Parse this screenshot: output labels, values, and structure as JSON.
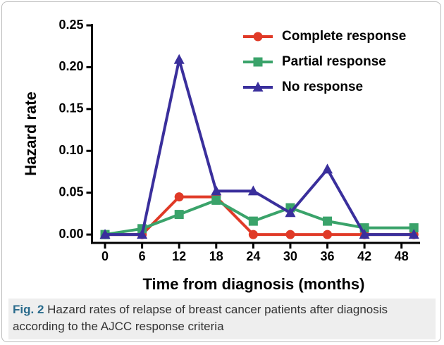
{
  "chart_data": {
    "type": "line",
    "xlabel": "Time from diagnosis (months)",
    "ylabel": "Hazard rate",
    "x": [
      0,
      6,
      12,
      18,
      24,
      30,
      36,
      42,
      50
    ],
    "xlim": [
      -2,
      51
    ],
    "xticks": [
      0,
      6,
      12,
      18,
      24,
      30,
      36,
      42,
      48
    ],
    "ylim": [
      -0.01,
      0.25
    ],
    "yticks": [
      {
        "value": 0,
        "label": "0.00"
      },
      {
        "value": 0.05,
        "label": "0.05"
      },
      {
        "value": 0.1,
        "label": "0.10"
      },
      {
        "value": 0.15,
        "label": "0.15"
      },
      {
        "value": 0.2,
        "label": "0.20"
      },
      {
        "value": 0.25,
        "label": "0.25"
      }
    ],
    "legend": "upper right",
    "series": [
      {
        "name": "Complete response",
        "color": "#e03a27",
        "marker": "circle",
        "values": [
          0,
          0,
          0.045,
          0.045,
          0,
          0,
          0,
          0,
          0
        ]
      },
      {
        "name": "Partial response",
        "color": "#3aa36a",
        "marker": "square",
        "values": [
          0,
          0.007,
          0.024,
          0.041,
          0.016,
          0.032,
          0.016,
          0.008,
          0.008
        ]
      },
      {
        "name": "No response",
        "color": "#3a2f9c",
        "marker": "triangle",
        "values": [
          0,
          0,
          0.209,
          0.052,
          0.052,
          0.026,
          0.078,
          0,
          0
        ]
      }
    ]
  },
  "caption": {
    "label": "Fig. 2",
    "text": "Hazard rates of relapse of breast cancer patients after diagnosis according to the AJCC response criteria"
  }
}
